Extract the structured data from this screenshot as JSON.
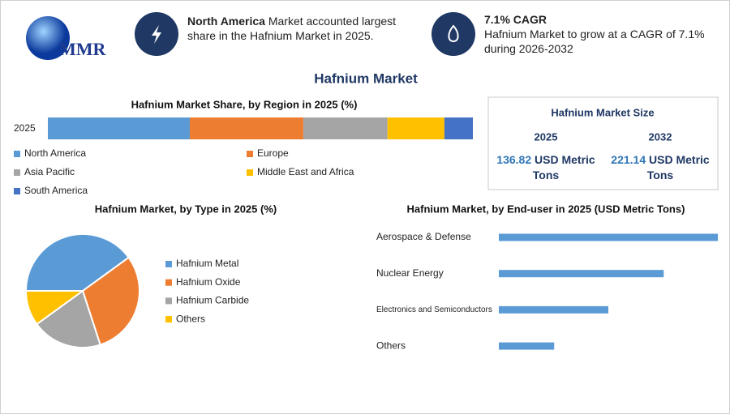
{
  "logo": "MMR",
  "header": {
    "highlight_1": {
      "bold": "North America",
      "text": "Market accounted largest share in the Hafnium Market in 2025."
    },
    "highlight_2": {
      "bold": "7.1% CAGR",
      "text": "Hafnium Market to grow at a CAGR of 7.1% during 2026-2032"
    }
  },
  "title": "Hafnium Market",
  "market_size": {
    "title": "Hafnium Market Size",
    "unit": "USD Metric Tons",
    "columns": [
      {
        "year": "2025",
        "value": 136.82
      },
      {
        "year": "2032",
        "value": 221.14
      }
    ]
  },
  "chart_data": [
    {
      "type": "stacked_bar",
      "title": "Hafnium Market Share, by Region in 2025 (%)",
      "categories": [
        "2025"
      ],
      "xlim": [
        0,
        100
      ],
      "series": [
        {
          "name": "North America",
          "color": "#5b9bd5",
          "values": [
            33.4
          ]
        },
        {
          "name": "Europe",
          "color": "#ed7d31",
          "values": [
            26.7
          ]
        },
        {
          "name": "Asia Pacific",
          "color": "#a5a5a5",
          "values": [
            19.8
          ]
        },
        {
          "name": "Middle East and Africa",
          "color": "#ffc000",
          "values": [
            13.4
          ]
        },
        {
          "name": "South America",
          "color": "#4472c4",
          "values": [
            6.7
          ]
        }
      ]
    },
    {
      "type": "pie",
      "title": "Hafnium Market, by Type in 2025 (%)",
      "categories": [
        "Hafnium Metal",
        "Hafnium Oxide",
        "Hafnium Carbide",
        "Others"
      ],
      "values": [
        40,
        30,
        20,
        10
      ],
      "colors": [
        "#5b9bd5",
        "#ed7d31",
        "#a5a5a5",
        "#ffc000"
      ]
    },
    {
      "type": "hbar",
      "title": "Hafnium Market, by End-user in 2025 (USD Metric Tons)",
      "categories": [
        "Aerospace & Defense",
        "Nuclear Energy",
        "Electronics and Semiconductors",
        "Others"
      ],
      "values": [
        54.6,
        41.1,
        27.3,
        13.8
      ],
      "color": "#5b9bd5",
      "xlim": [
        0,
        55
      ]
    }
  ]
}
